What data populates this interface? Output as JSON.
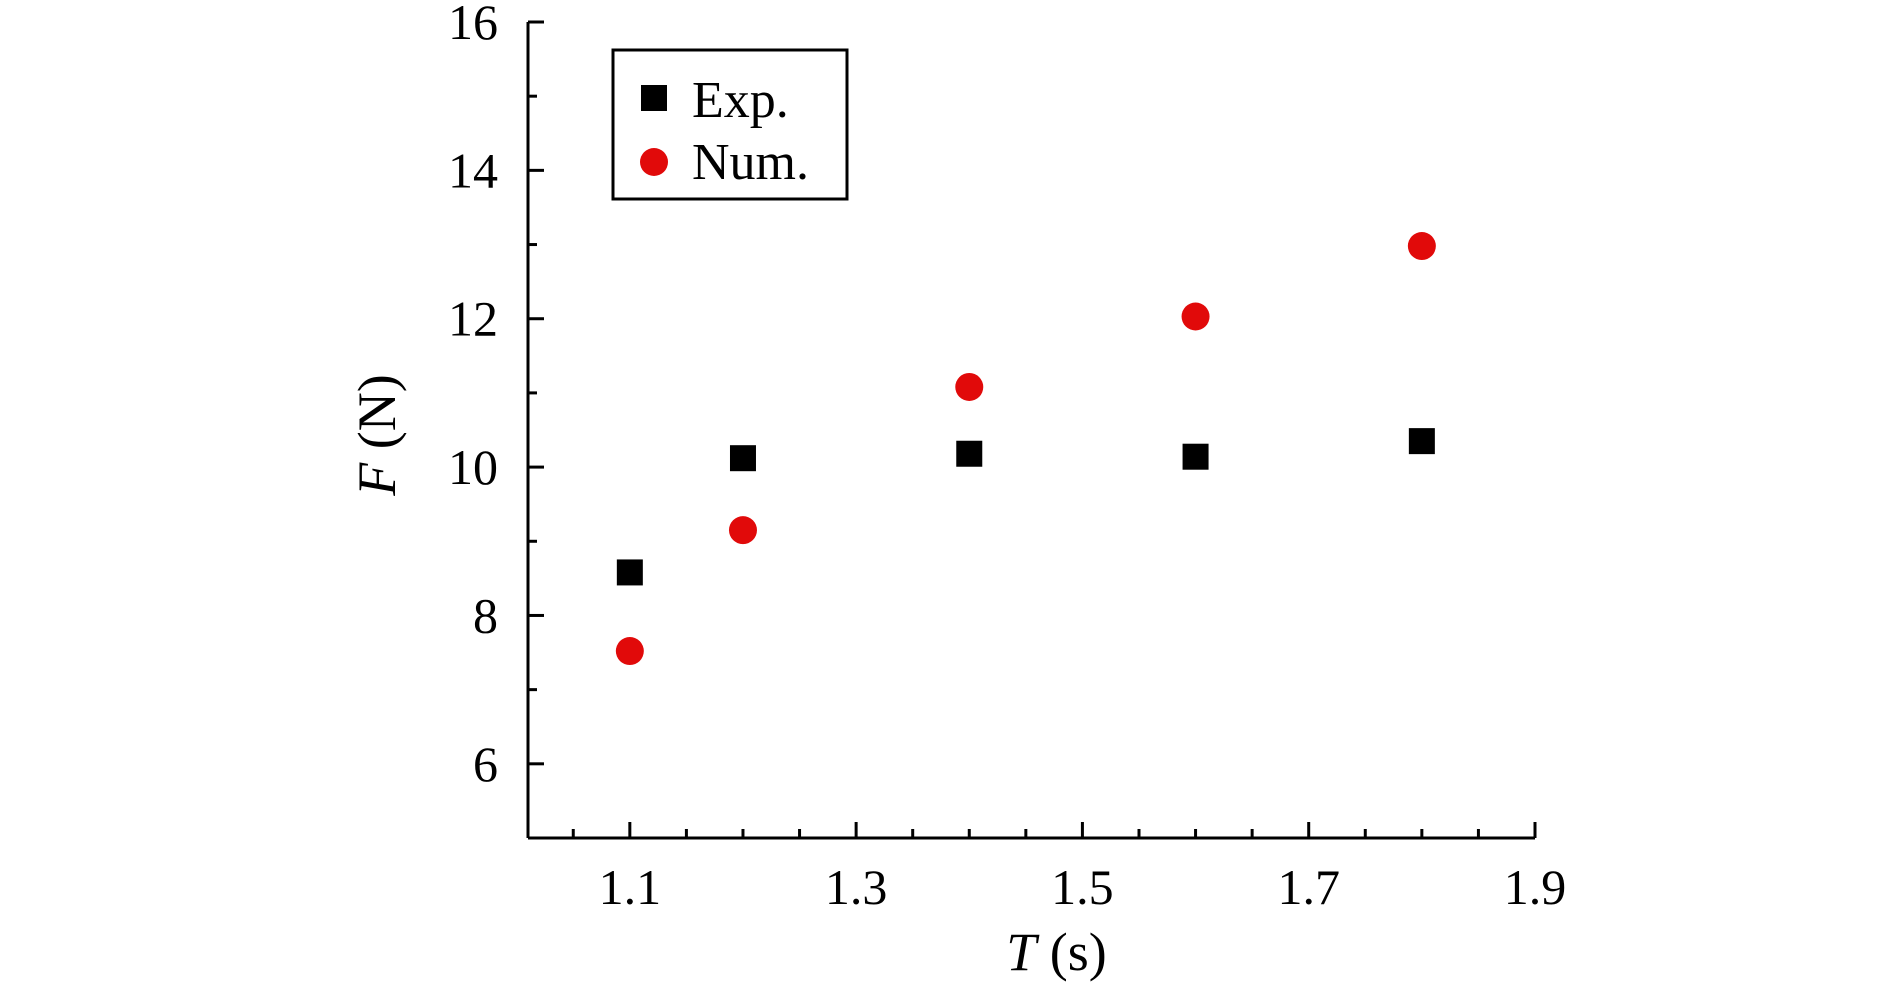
{
  "chart_data": {
    "type": "scatter",
    "xlabel": {
      "symbol": "T",
      "unit": "(s)"
    },
    "ylabel": {
      "symbol": "F",
      "unit": "(N)"
    },
    "xlim": [
      1.01,
      1.9
    ],
    "ylim": [
      5,
      16
    ],
    "xticks": [
      1.1,
      1.3,
      1.5,
      1.7,
      1.9
    ],
    "xtick_labels": [
      "1.1",
      "1.3",
      "1.5",
      "1.7",
      "1.9"
    ],
    "xminor_step": 0.05,
    "yticks": [
      6,
      8,
      10,
      12,
      14,
      16
    ],
    "ytick_labels": [
      "6",
      "8",
      "10",
      "12",
      "14",
      "16"
    ],
    "yminor_step": 1,
    "grid": false,
    "legend_position": "top-left",
    "series": [
      {
        "name": "Exp.",
        "marker": "square",
        "color": "#000000",
        "x": [
          1.1,
          1.2,
          1.4,
          1.6,
          1.8
        ],
        "y": [
          8.58,
          10.12,
          10.18,
          10.14,
          10.35
        ]
      },
      {
        "name": "Num.",
        "marker": "circle",
        "color": "#e10a0a",
        "x": [
          1.1,
          1.2,
          1.4,
          1.6,
          1.8
        ],
        "y": [
          7.52,
          9.15,
          11.08,
          12.03,
          12.98
        ]
      }
    ]
  }
}
